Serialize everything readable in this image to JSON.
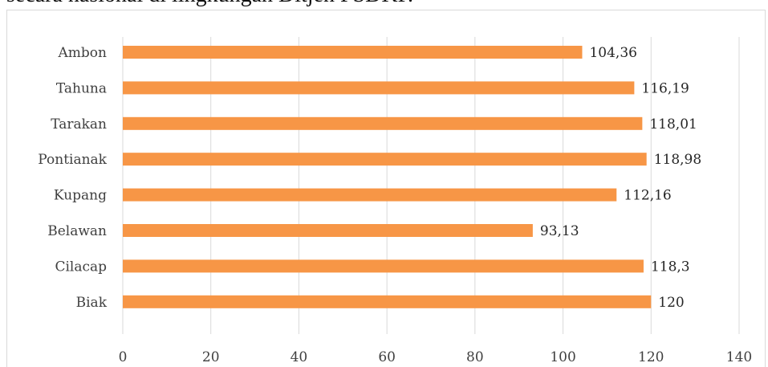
{
  "header": {
    "text": "secara nasional di lingkungan Ditjen PSDKP."
  },
  "chart_data": {
    "type": "bar",
    "orientation": "horizontal",
    "categories": [
      "Ambon",
      "Tahuna",
      "Tarakan",
      "Pontianak",
      "Kupang",
      "Belawan",
      "Cilacap",
      "Biak"
    ],
    "values": [
      104.36,
      116.19,
      118.01,
      118.98,
      112.16,
      93.13,
      118.3,
      120
    ],
    "data_labels": [
      "104,36",
      "116,19",
      "118,01",
      "118,98",
      "112,16",
      "93,13",
      "118,3",
      "120"
    ],
    "xlim": [
      0,
      140
    ],
    "x_ticks": [
      0,
      20,
      40,
      60,
      80,
      100,
      120,
      140
    ],
    "grid": true,
    "bar_color": "#F79646",
    "grid_color": "#d9d9d9"
  }
}
